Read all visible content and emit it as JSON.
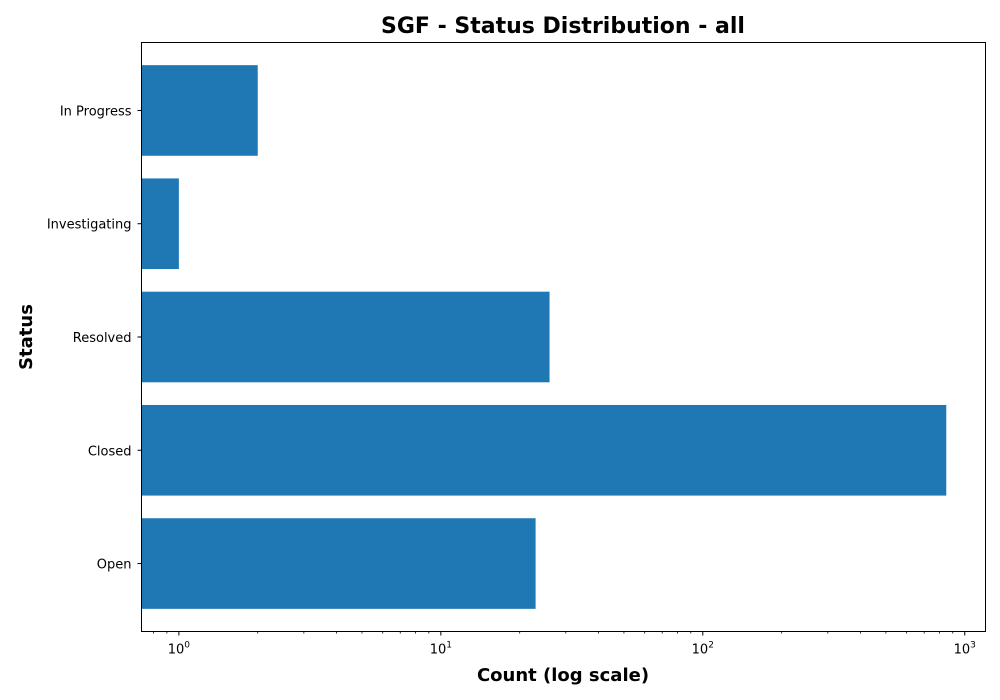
{
  "chart_data": {
    "type": "bar",
    "orientation": "horizontal",
    "title": "SGF - Status Distribution - all",
    "xlabel": "Count (log scale)",
    "ylabel": "Status",
    "xscale": "log",
    "xlim": [
      0.72,
      1200
    ],
    "x_ticks": [
      1,
      10,
      100,
      1000
    ],
    "x_tick_labels": [
      "10^0",
      "10^1",
      "10^2",
      "10^3"
    ],
    "categories": [
      "Open",
      "Closed",
      "Resolved",
      "Investigating",
      "In Progress"
    ],
    "values": [
      23,
      850,
      26,
      1,
      2
    ],
    "bar_color": "#1f77b4",
    "grid": false,
    "legend": "none"
  }
}
